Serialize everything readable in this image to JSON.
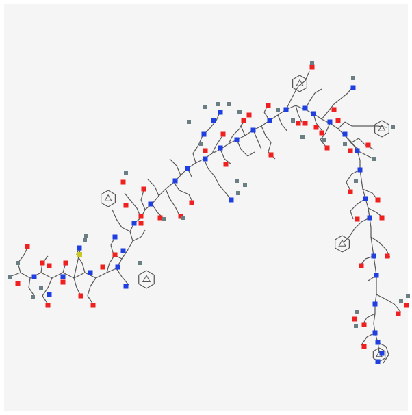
{
  "figure": {
    "kind": "2d-chemical-structure",
    "style": "peptide-backbone-skeletal",
    "background_color": "#f5f5f5",
    "bond_color": "#555555",
    "atom_colors": {
      "oxygen": "#ee2020",
      "nitrogen": "#1f3fe0",
      "sulfur": "#c8c820",
      "hydrogen": "#6a7f84"
    },
    "label_glyph": "",
    "description": ""
  }
}
